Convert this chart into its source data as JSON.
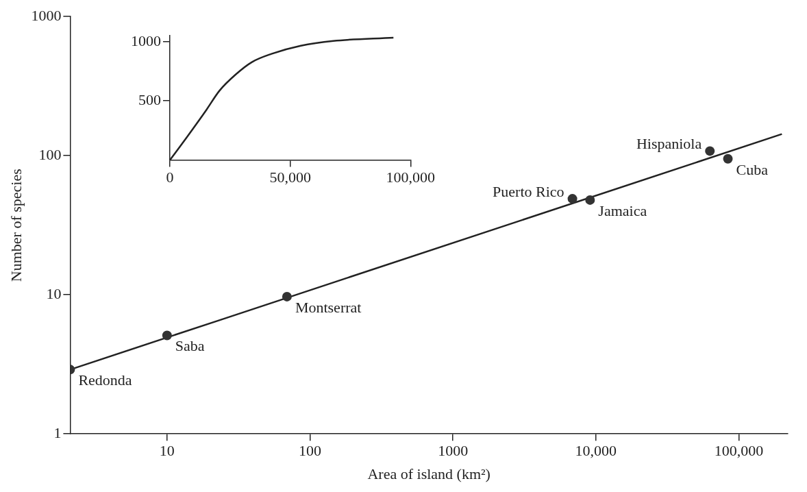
{
  "chart_data": [
    {
      "type": "scatter",
      "xlabel": "Area of island (km²)",
      "ylabel": "Number of species",
      "log": "xy",
      "grid": false,
      "legend": false,
      "xlim": [
        2.1,
        220000
      ],
      "ylim": [
        1,
        1000
      ],
      "xticks": [
        10,
        100,
        1000,
        {
          "value": 10000,
          "label": "10,000"
        },
        {
          "value": 100000,
          "label": "100,000"
        }
      ],
      "yticks": [
        1,
        10,
        100,
        1000
      ],
      "series": [
        {
          "marker": "circle",
          "color": "#333333",
          "x": [
            2.1,
            10,
            69,
            6850,
            9100,
            62700,
            83800
          ],
          "values": [
            2.9,
            5.1,
            9.7,
            49,
            48,
            108,
            95
          ]
        },
        {
          "type": "line",
          "marker": "none",
          "color": "#222222",
          "x": [
            2.1,
            200000
          ],
          "values": [
            2.9,
            143
          ]
        }
      ],
      "annotations": [
        {
          "text": "Redonda",
          "x": 2.1,
          "y": 2.9
        },
        {
          "text": "Saba",
          "x": 10,
          "y": 5.1
        },
        {
          "text": "Montserrat",
          "x": 69,
          "y": 9.7
        },
        {
          "text": "Puerto Rico",
          "x": 6850,
          "y": 49
        },
        {
          "text": "Jamaica",
          "x": 9100,
          "y": 48
        },
        {
          "text": "Hispaniola",
          "x": 62700,
          "y": 108
        },
        {
          "text": "Cuba",
          "x": 83800,
          "y": 95
        }
      ]
    },
    {
      "type": "line",
      "grid": false,
      "legend": false,
      "marker": "none",
      "xlim": [
        0,
        100000
      ],
      "ylim": [
        0,
        1050
      ],
      "xticks": [
        0,
        {
          "value": 50000,
          "label": "50,000"
        },
        {
          "value": 100000,
          "label": "100,000"
        }
      ],
      "yticks": [
        500,
        1000
      ],
      "series": [
        {
          "color": "#222222",
          "x": [
            0,
            7100,
            15200,
            20600,
            27400,
            34100,
            42200,
            54400,
            67900,
            92900
          ],
          "values": [
            0,
            195,
            425,
            586,
            724,
            828,
            897,
            966,
            1006,
            1034
          ]
        }
      ]
    }
  ]
}
